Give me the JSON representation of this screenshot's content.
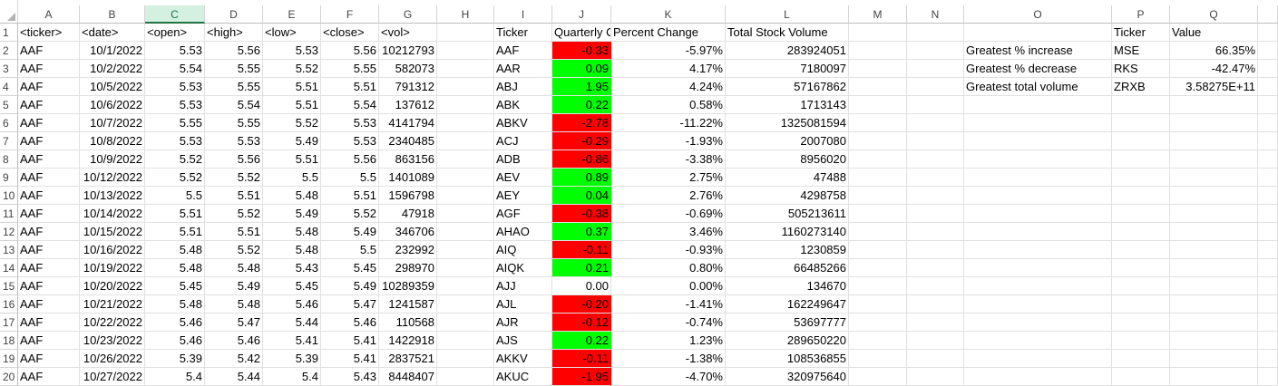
{
  "columns": [
    "A",
    "B",
    "C",
    "D",
    "E",
    "F",
    "G",
    "H",
    "I",
    "J",
    "K",
    "L",
    "M",
    "N",
    "O",
    "P",
    "Q"
  ],
  "selected_column": "C",
  "raw_headers": [
    "<ticker>",
    "<date>",
    "<open>",
    "<high>",
    "<low>",
    "<close>",
    "<vol>"
  ],
  "raw_rows": [
    [
      "AAF",
      "10/1/2022",
      "5.53",
      "5.56",
      "5.53",
      "5.56",
      "10212793"
    ],
    [
      "AAF",
      "10/2/2022",
      "5.54",
      "5.55",
      "5.52",
      "5.55",
      "582073"
    ],
    [
      "AAF",
      "10/5/2022",
      "5.53",
      "5.55",
      "5.51",
      "5.51",
      "791312"
    ],
    [
      "AAF",
      "10/6/2022",
      "5.53",
      "5.54",
      "5.51",
      "5.54",
      "137612"
    ],
    [
      "AAF",
      "10/7/2022",
      "5.55",
      "5.55",
      "5.52",
      "5.53",
      "4141794"
    ],
    [
      "AAF",
      "10/8/2022",
      "5.53",
      "5.53",
      "5.49",
      "5.53",
      "2340485"
    ],
    [
      "AAF",
      "10/9/2022",
      "5.52",
      "5.56",
      "5.51",
      "5.56",
      "863156"
    ],
    [
      "AAF",
      "10/12/2022",
      "5.52",
      "5.52",
      "5.5",
      "5.5",
      "1401089"
    ],
    [
      "AAF",
      "10/13/2022",
      "5.5",
      "5.51",
      "5.48",
      "5.51",
      "1596798"
    ],
    [
      "AAF",
      "10/14/2022",
      "5.51",
      "5.52",
      "5.49",
      "5.52",
      "47918"
    ],
    [
      "AAF",
      "10/15/2022",
      "5.51",
      "5.51",
      "5.48",
      "5.49",
      "346706"
    ],
    [
      "AAF",
      "10/16/2022",
      "5.48",
      "5.52",
      "5.48",
      "5.5",
      "232992"
    ],
    [
      "AAF",
      "10/19/2022",
      "5.48",
      "5.48",
      "5.43",
      "5.45",
      "298970"
    ],
    [
      "AAF",
      "10/20/2022",
      "5.45",
      "5.49",
      "5.45",
      "5.49",
      "10289359"
    ],
    [
      "AAF",
      "10/21/2022",
      "5.48",
      "5.48",
      "5.46",
      "5.47",
      "1241587"
    ],
    [
      "AAF",
      "10/22/2022",
      "5.46",
      "5.47",
      "5.44",
      "5.46",
      "110568"
    ],
    [
      "AAF",
      "10/23/2022",
      "5.46",
      "5.46",
      "5.41",
      "5.41",
      "1422918"
    ],
    [
      "AAF",
      "10/26/2022",
      "5.39",
      "5.42",
      "5.39",
      "5.41",
      "2837521"
    ],
    [
      "AAF",
      "10/27/2022",
      "5.4",
      "5.44",
      "5.4",
      "5.43",
      "8448407"
    ]
  ],
  "summary_headers": [
    "Ticker",
    "Quarterly Change",
    "Percent Change",
    "Total Stock Volume"
  ],
  "summary_rows": [
    {
      "ticker": "AAF",
      "change": "-0.33",
      "pct": "-5.97%",
      "vol": "283924051",
      "color": "#ff0000"
    },
    {
      "ticker": "AAR",
      "change": "0.09",
      "pct": "4.17%",
      "vol": "7180097",
      "color": "#00ff00"
    },
    {
      "ticker": "ABJ",
      "change": "1.95",
      "pct": "4.24%",
      "vol": "57167862",
      "color": "#00ff00"
    },
    {
      "ticker": "ABK",
      "change": "0.22",
      "pct": "0.58%",
      "vol": "1713143",
      "color": "#00ff00"
    },
    {
      "ticker": "ABKV",
      "change": "-2.78",
      "pct": "-11.22%",
      "vol": "1325081594",
      "color": "#ff0000"
    },
    {
      "ticker": "ACJ",
      "change": "-0.29",
      "pct": "-1.93%",
      "vol": "2007080",
      "color": "#ff0000"
    },
    {
      "ticker": "ADB",
      "change": "-0.86",
      "pct": "-3.38%",
      "vol": "8956020",
      "color": "#ff0000"
    },
    {
      "ticker": "AEV",
      "change": "0.89",
      "pct": "2.75%",
      "vol": "47488",
      "color": "#00ff00"
    },
    {
      "ticker": "AEY",
      "change": "0.04",
      "pct": "2.76%",
      "vol": "4298758",
      "color": "#00ff00"
    },
    {
      "ticker": "AGF",
      "change": "-0.38",
      "pct": "-0.69%",
      "vol": "505213611",
      "color": "#ff0000"
    },
    {
      "ticker": "AHAO",
      "change": "0.37",
      "pct": "3.46%",
      "vol": "1160273140",
      "color": "#00ff00"
    },
    {
      "ticker": "AIQ",
      "change": "-0.11",
      "pct": "-0.93%",
      "vol": "1230859",
      "color": "#ff0000"
    },
    {
      "ticker": "AIQK",
      "change": "0.21",
      "pct": "0.80%",
      "vol": "66485266",
      "color": "#00ff00"
    },
    {
      "ticker": "AJJ",
      "change": "0.00",
      "pct": "0.00%",
      "vol": "134670",
      "color": ""
    },
    {
      "ticker": "AJL",
      "change": "-0.20",
      "pct": "-1.41%",
      "vol": "162249647",
      "color": "#ff0000"
    },
    {
      "ticker": "AJR",
      "change": "-0.12",
      "pct": "-0.74%",
      "vol": "53697777",
      "color": "#ff0000"
    },
    {
      "ticker": "AJS",
      "change": "0.22",
      "pct": "1.23%",
      "vol": "289650220",
      "color": "#00ff00"
    },
    {
      "ticker": "AKKV",
      "change": "-0.11",
      "pct": "-1.38%",
      "vol": "108536855",
      "color": "#ff0000"
    },
    {
      "ticker": "AKUC",
      "change": "-1.95",
      "pct": "-4.70%",
      "vol": "320975640",
      "color": "#ff0000"
    }
  ],
  "greatest_headers": [
    "Ticker",
    "Value"
  ],
  "greatest_rows": [
    {
      "label": "Greatest % increase",
      "ticker": "MSE",
      "value": "66.35%"
    },
    {
      "label": "Greatest % decrease",
      "ticker": "RKS",
      "value": "-42.47%"
    },
    {
      "label": "Greatest total volume",
      "ticker": "ZRXB",
      "value": "3.58275E+11"
    }
  ]
}
